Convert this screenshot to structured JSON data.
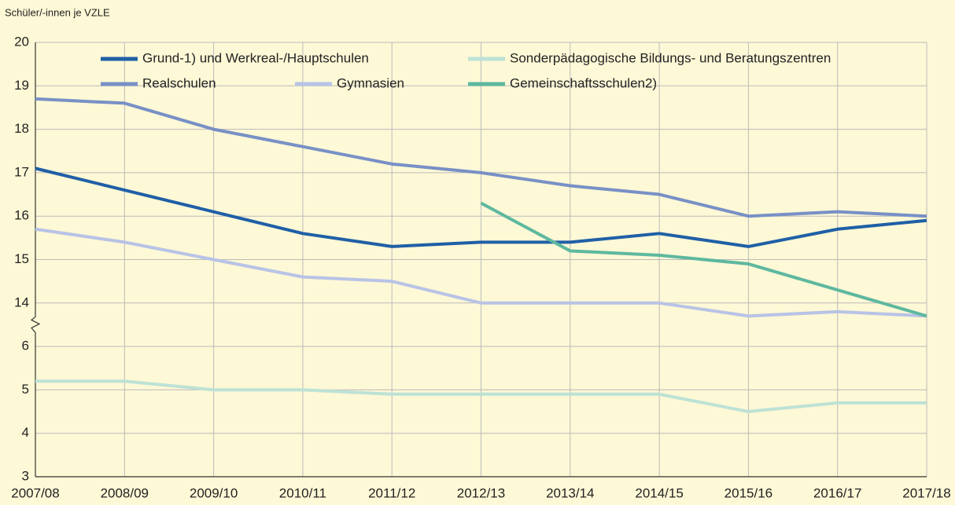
{
  "chart_data": {
    "type": "line",
    "y_label": "Schüler/-innen je VZLE",
    "categories": [
      "2007/08",
      "2008/09",
      "2009/10",
      "2010/11",
      "2011/12",
      "2012/13",
      "2013/14",
      "2014/15",
      "2015/16",
      "2016/17",
      "2017/18"
    ],
    "series": [
      {
        "name": "Grund-1) und Werkreal-/Hauptschulen",
        "color": "#1f5fa6",
        "values": [
          17.1,
          16.6,
          16.1,
          15.6,
          15.3,
          15.4,
          15.4,
          15.6,
          15.3,
          15.7,
          15.9
        ]
      },
      {
        "name": "Realschulen",
        "color": "#7890c6",
        "values": [
          18.7,
          18.6,
          18.0,
          17.6,
          17.2,
          17.0,
          16.7,
          16.5,
          16.0,
          16.1,
          16.0
        ]
      },
      {
        "name": "Gymnasien",
        "color": "#b8c3e6",
        "values": [
          15.7,
          15.4,
          15.0,
          14.6,
          14.5,
          14.0,
          14.0,
          14.0,
          13.7,
          13.8,
          13.7
        ]
      },
      {
        "name": "Sonderpädagogische Bildungs- und Beratungszentren",
        "color": "#bde2d6",
        "values": [
          5.2,
          5.2,
          5.0,
          5.0,
          4.9,
          4.9,
          4.9,
          4.9,
          4.5,
          4.7,
          4.7
        ]
      },
      {
        "name": "Gemeinschaftsschulen2)",
        "color": "#5db89f",
        "values": [
          null,
          null,
          null,
          null,
          null,
          16.3,
          15.2,
          15.1,
          14.9,
          14.3,
          13.7
        ]
      }
    ],
    "ylim": [
      3,
      20
    ],
    "y_break": [
      6,
      14
    ],
    "yticks": [
      3,
      4,
      5,
      6,
      14,
      15,
      16,
      17,
      18,
      19,
      20
    ],
    "grid": true
  }
}
